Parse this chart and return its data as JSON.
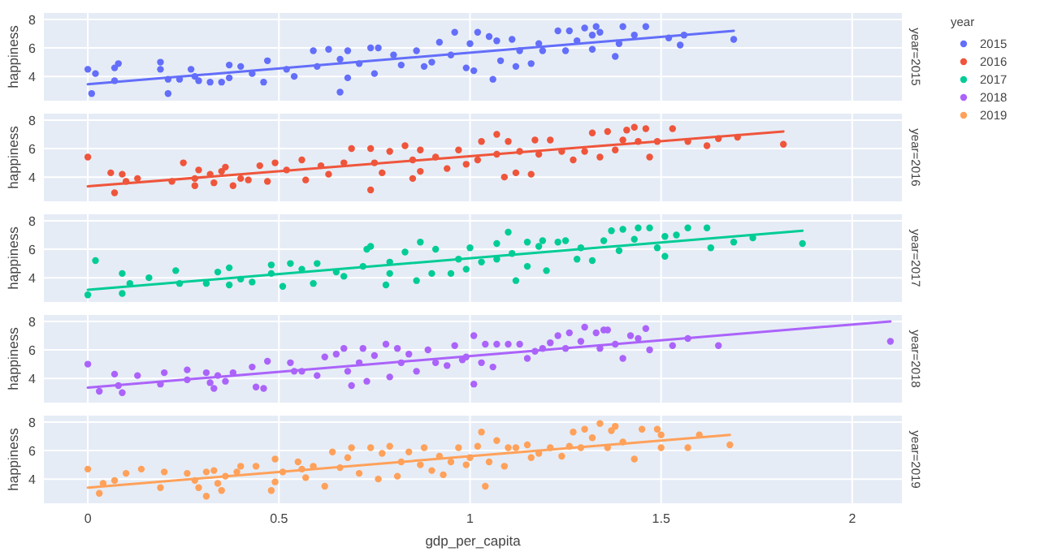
{
  "chart_data": [
    {
      "type": "scatter",
      "ylabel": "happiness",
      "annotations": [
        "year=2015"
      ],
      "legend": "top right",
      "legend_title": "year",
      "grid": true,
      "marker": "circle",
      "tick_labels": "y",
      "xlim": [
        -0.115,
        2.13
      ],
      "xticks": [
        0,
        0.5,
        1,
        1.5,
        2
      ],
      "ylim": [
        2.3,
        8.45
      ],
      "yticks": [
        4,
        6,
        8
      ],
      "series": [
        {
          "name": "2015",
          "color": "#636efa",
          "x": [
            0,
            0.02,
            0.01,
            0.07,
            0.07,
            0.08,
            0.19,
            0.19,
            0.21,
            0.21,
            0.24,
            0.27,
            0.28,
            0.29,
            0.32,
            0.35,
            0.37,
            0.37,
            0.4,
            0.43,
            0.46,
            0.47,
            0.52,
            0.54,
            0.59,
            0.6,
            0.63,
            0.66,
            0.66,
            0.68,
            0.68,
            0.71,
            0.74,
            0.75,
            0.76,
            0.8,
            0.82,
            0.86,
            0.88,
            0.9,
            0.92,
            0.96,
            0.95,
            0.99,
            1.0,
            1.01,
            1.02,
            1.05,
            1.06,
            1.07,
            1.08,
            1.11,
            1.12,
            1.13,
            1.16,
            1.18,
            1.19,
            1.23,
            1.25,
            1.26,
            1.28,
            1.3,
            1.32,
            1.32,
            1.33,
            1.34,
            1.38,
            1.39,
            1.4,
            1.43,
            1.46,
            1.52,
            1.55,
            1.56,
            1.69
          ],
          "values": [
            4.5,
            4.2,
            2.8,
            4.6,
            3.7,
            4.9,
            5.0,
            4.5,
            3.8,
            2.8,
            3.8,
            4.5,
            4.0,
            3.7,
            3.6,
            3.6,
            3.9,
            4.8,
            4.7,
            4.2,
            3.6,
            5.1,
            4.5,
            4.0,
            5.8,
            4.7,
            5.9,
            5.2,
            2.9,
            3.9,
            5.8,
            4.9,
            6.0,
            4.2,
            6.0,
            5.5,
            4.8,
            5.8,
            4.7,
            5.0,
            6.4,
            7.1,
            5.5,
            4.6,
            6.3,
            4.4,
            7.1,
            6.8,
            3.8,
            6.5,
            5.1,
            6.6,
            4.7,
            5.8,
            4.9,
            6.3,
            5.8,
            7.2,
            5.8,
            7.2,
            6.5,
            7.4,
            6.9,
            5.9,
            7.5,
            7.1,
            5.4,
            6.3,
            7.5,
            6.9,
            7.5,
            6.7,
            6.2,
            6.9,
            6.6
          ]
        },
        {
          "type": "line",
          "color": "#636efa",
          "marker": "none",
          "x": [
            0,
            1.69
          ],
          "values": [
            3.45,
            7.2
          ]
        }
      ]
    },
    {
      "type": "scatter",
      "ylabel": "happiness",
      "annotations": [
        "year=2016"
      ],
      "legend": "top right",
      "grid": true,
      "marker": "circle",
      "tick_labels": "y",
      "xlim": [
        -0.115,
        2.13
      ],
      "xticks": [
        0,
        0.5,
        1,
        1.5,
        2
      ],
      "ylim": [
        2.3,
        8.45
      ],
      "yticks": [
        4,
        6,
        8
      ],
      "series": [
        {
          "name": "2016",
          "color": "#ef553b",
          "x": [
            0,
            0.06,
            0.07,
            0.09,
            0.1,
            0.13,
            0.22,
            0.25,
            0.28,
            0.28,
            0.29,
            0.32,
            0.33,
            0.35,
            0.36,
            0.38,
            0.4,
            0.42,
            0.45,
            0.47,
            0.49,
            0.52,
            0.56,
            0.57,
            0.61,
            0.63,
            0.67,
            0.69,
            0.74,
            0.74,
            0.75,
            0.77,
            0.79,
            0.83,
            0.85,
            0.85,
            0.87,
            0.87,
            0.91,
            0.94,
            0.97,
            0.99,
            1.02,
            1.03,
            1.07,
            1.07,
            1.09,
            1.1,
            1.12,
            1.13,
            1.16,
            1.17,
            1.18,
            1.21,
            1.24,
            1.27,
            1.3,
            1.32,
            1.34,
            1.36,
            1.38,
            1.4,
            1.41,
            1.43,
            1.44,
            1.46,
            1.47,
            1.49,
            1.53,
            1.57,
            1.62,
            1.65,
            1.7,
            1.82
          ],
          "values": [
            5.4,
            4.3,
            2.9,
            4.2,
            3.7,
            3.9,
            3.7,
            5.0,
            3.9,
            3.4,
            4.5,
            4.2,
            3.6,
            4.4,
            4.7,
            3.4,
            3.9,
            3.8,
            4.8,
            3.7,
            5.0,
            4.5,
            5.2,
            3.8,
            4.8,
            4.2,
            5.0,
            6.0,
            6.0,
            3.1,
            5.0,
            4.3,
            5.8,
            6.2,
            3.9,
            5.2,
            4.4,
            5.9,
            5.4,
            4.6,
            5.9,
            4.9,
            5.2,
            6.5,
            7.0,
            5.6,
            4.0,
            6.5,
            4.3,
            5.8,
            4.2,
            6.6,
            5.6,
            6.6,
            5.8,
            5.2,
            5.8,
            7.1,
            5.4,
            7.2,
            5.9,
            6.6,
            7.3,
            7.5,
            6.5,
            7.4,
            5.4,
            6.5,
            7.4,
            6.5,
            6.2,
            6.7,
            6.8,
            6.3
          ]
        },
        {
          "type": "line",
          "color": "#ef553b",
          "marker": "none",
          "x": [
            0,
            1.82
          ],
          "values": [
            3.35,
            7.2
          ]
        }
      ]
    },
    {
      "type": "scatter",
      "ylabel": "happiness",
      "annotations": [
        "year=2017"
      ],
      "legend": "top right",
      "grid": true,
      "marker": "circle",
      "tick_labels": "y",
      "xlim": [
        -0.115,
        2.13
      ],
      "xticks": [
        0,
        0.5,
        1,
        1.5,
        2
      ],
      "ylim": [
        2.3,
        8.45
      ],
      "yticks": [
        4,
        6,
        8
      ],
      "series": [
        {
          "name": "2017",
          "color": "#00cc96",
          "x": [
            0,
            0.02,
            0.09,
            0.09,
            0.11,
            0.16,
            0.23,
            0.24,
            0.31,
            0.34,
            0.37,
            0.37,
            0.4,
            0.43,
            0.48,
            0.48,
            0.51,
            0.53,
            0.56,
            0.59,
            0.6,
            0.65,
            0.67,
            0.72,
            0.73,
            0.74,
            0.78,
            0.79,
            0.79,
            0.83,
            0.87,
            0.86,
            0.9,
            0.91,
            0.95,
            0.97,
            0.99,
            1.0,
            1.03,
            1.07,
            1.07,
            1.1,
            1.11,
            1.12,
            1.15,
            1.15,
            1.18,
            1.19,
            1.2,
            1.23,
            1.25,
            1.28,
            1.29,
            1.32,
            1.35,
            1.37,
            1.39,
            1.4,
            1.43,
            1.44,
            1.47,
            1.49,
            1.51,
            1.51,
            1.54,
            1.57,
            1.62,
            1.63,
            1.69,
            1.74,
            1.87
          ],
          "values": [
            2.8,
            5.2,
            4.3,
            2.9,
            3.6,
            4.0,
            4.5,
            3.6,
            3.6,
            4.4,
            4.7,
            3.5,
            3.9,
            3.7,
            4.9,
            4.3,
            3.4,
            5.0,
            4.6,
            3.6,
            5.0,
            4.4,
            4.1,
            4.8,
            6.0,
            6.2,
            3.5,
            5.1,
            4.3,
            5.8,
            6.5,
            3.8,
            4.3,
            6.0,
            4.3,
            5.3,
            4.6,
            6.1,
            5.1,
            6.4,
            5.3,
            7.2,
            5.7,
            3.8,
            6.5,
            4.8,
            6.2,
            6.6,
            4.5,
            6.5,
            6.6,
            5.3,
            6.1,
            5.2,
            6.6,
            7.3,
            5.9,
            7.4,
            6.7,
            7.5,
            7.5,
            6.1,
            6.9,
            5.5,
            7.0,
            7.5,
            7.5,
            6.1,
            6.5,
            6.8,
            6.4
          ]
        },
        {
          "type": "line",
          "color": "#00cc96",
          "marker": "none",
          "x": [
            0,
            1.87
          ],
          "values": [
            3.15,
            7.3
          ]
        }
      ]
    },
    {
      "type": "scatter",
      "ylabel": "happiness",
      "annotations": [
        "year=2018"
      ],
      "legend": "top right",
      "grid": true,
      "marker": "circle",
      "tick_labels": "y",
      "xlim": [
        -0.115,
        2.13
      ],
      "xticks": [
        0,
        0.5,
        1,
        1.5,
        2
      ],
      "ylim": [
        2.3,
        8.45
      ],
      "yticks": [
        4,
        6,
        8
      ],
      "series": [
        {
          "name": "2018",
          "color": "#ab63fa",
          "x": [
            0,
            0.03,
            0.07,
            0.08,
            0.09,
            0.13,
            0.19,
            0.2,
            0.26,
            0.26,
            0.31,
            0.32,
            0.33,
            0.34,
            0.36,
            0.38,
            0.43,
            0.44,
            0.46,
            0.47,
            0.53,
            0.54,
            0.56,
            0.6,
            0.62,
            0.65,
            0.67,
            0.68,
            0.69,
            0.71,
            0.72,
            0.73,
            0.75,
            0.78,
            0.79,
            0.81,
            0.82,
            0.84,
            0.86,
            0.89,
            0.91,
            0.94,
            0.96,
            0.98,
            0.99,
            1.01,
            1.01,
            1.03,
            1.04,
            1.06,
            1.07,
            1.1,
            1.13,
            1.15,
            1.17,
            1.19,
            1.21,
            1.23,
            1.25,
            1.26,
            1.29,
            1.3,
            1.33,
            1.34,
            1.35,
            1.36,
            1.38,
            1.4,
            1.42,
            1.44,
            1.46,
            1.47,
            1.53,
            1.57,
            1.65,
            2.1
          ],
          "values": [
            5.0,
            3.1,
            4.3,
            3.5,
            3.0,
            4.2,
            3.6,
            4.4,
            4.6,
            3.9,
            4.4,
            3.7,
            3.3,
            4.2,
            3.8,
            4.4,
            4.8,
            3.4,
            3.3,
            5.2,
            5.1,
            4.5,
            4.5,
            4.2,
            5.5,
            5.7,
            6.1,
            4.5,
            3.5,
            5.1,
            6.1,
            3.8,
            5.6,
            6.4,
            4.1,
            6.1,
            5.1,
            5.7,
            4.5,
            6.0,
            5.1,
            4.9,
            6.3,
            5.3,
            5.5,
            7.0,
            3.6,
            5.1,
            6.4,
            4.8,
            6.4,
            6.4,
            6.4,
            5.4,
            5.9,
            6.1,
            6.5,
            7.0,
            6.1,
            7.2,
            6.6,
            7.6,
            7.2,
            6.1,
            7.4,
            7.4,
            6.4,
            5.4,
            7.0,
            6.8,
            7.5,
            6.0,
            6.3,
            6.8,
            6.3,
            6.6
          ]
        },
        {
          "type": "line",
          "color": "#ab63fa",
          "marker": "none",
          "x": [
            0,
            2.1
          ],
          "values": [
            3.35,
            8.0
          ]
        }
      ]
    },
    {
      "type": "scatter",
      "ylabel": "happiness",
      "xlabel": "gdp_per_capita",
      "annotations": [
        "year=2019"
      ],
      "legend": "top right",
      "grid": true,
      "marker": "circle",
      "xlim": [
        -0.115,
        2.13
      ],
      "xticks": [
        0,
        0.5,
        1,
        1.5,
        2
      ],
      "ylim": [
        2.3,
        8.45
      ],
      "yticks": [
        4,
        6,
        8
      ],
      "series": [
        {
          "name": "2019",
          "color": "#ffa15a",
          "x": [
            0,
            0.03,
            0.04,
            0.07,
            0.1,
            0.14,
            0.19,
            0.2,
            0.26,
            0.28,
            0.29,
            0.31,
            0.31,
            0.33,
            0.34,
            0.35,
            0.36,
            0.39,
            0.4,
            0.44,
            0.48,
            0.49,
            0.49,
            0.51,
            0.55,
            0.56,
            0.57,
            0.59,
            0.62,
            0.64,
            0.66,
            0.68,
            0.69,
            0.71,
            0.74,
            0.76,
            0.77,
            0.79,
            0.81,
            0.82,
            0.84,
            0.87,
            0.88,
            0.9,
            0.92,
            0.93,
            0.95,
            0.97,
            0.99,
            1.0,
            1.02,
            1.03,
            1.04,
            1.05,
            1.07,
            1.09,
            1.1,
            1.12,
            1.15,
            1.16,
            1.18,
            1.21,
            1.24,
            1.26,
            1.27,
            1.29,
            1.3,
            1.32,
            1.34,
            1.36,
            1.37,
            1.38,
            1.4,
            1.43,
            1.45,
            1.49,
            1.5,
            1.5,
            1.57,
            1.6,
            1.68
          ],
          "values": [
            4.7,
            3.0,
            3.7,
            3.9,
            4.4,
            4.7,
            3.4,
            4.5,
            4.4,
            3.9,
            3.4,
            2.8,
            4.5,
            4.6,
            3.7,
            3.2,
            4.2,
            4.5,
            4.9,
            4.9,
            3.2,
            3.8,
            5.4,
            4.5,
            5.2,
            4.7,
            4.1,
            4.9,
            3.5,
            5.9,
            4.8,
            5.5,
            6.2,
            4.4,
            6.2,
            4.0,
            5.8,
            6.3,
            4.2,
            5.2,
            5.9,
            5.0,
            6.2,
            4.6,
            5.6,
            4.3,
            5.2,
            6.2,
            5.0,
            5.5,
            6.3,
            7.3,
            3.5,
            5.2,
            6.7,
            4.9,
            6.2,
            6.2,
            6.4,
            5.5,
            5.8,
            6.2,
            5.6,
            6.3,
            7.3,
            6.2,
            7.5,
            6.9,
            7.9,
            6.2,
            7.4,
            7.7,
            6.6,
            5.4,
            7.5,
            7.5,
            6.2,
            7.1,
            6.2,
            7.1,
            6.4
          ]
        },
        {
          "type": "line",
          "color": "#ffa15a",
          "marker": "none",
          "x": [
            0,
            1.68
          ],
          "values": [
            3.4,
            7.1
          ]
        }
      ]
    }
  ]
}
